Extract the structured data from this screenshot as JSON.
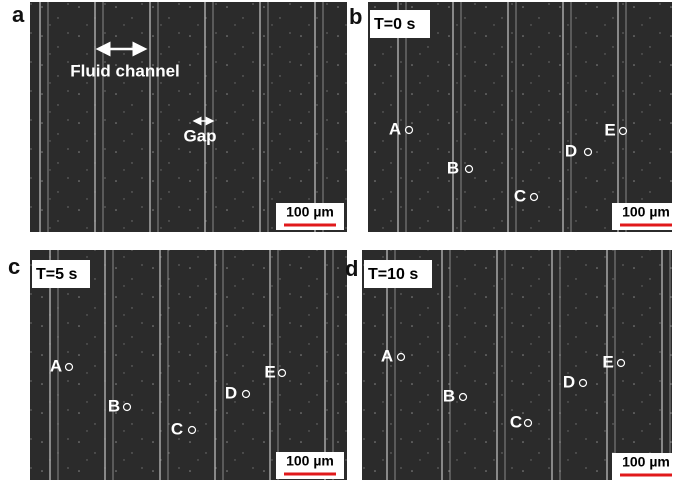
{
  "panels": [
    {
      "letter": "a",
      "annotations": [
        "Fluid channel",
        "Gap"
      ],
      "scale_bar": "100 µm"
    },
    {
      "letter": "b",
      "time": "T=0 s",
      "points": [
        "A",
        "B",
        "C",
        "D",
        "E"
      ],
      "scale_bar": "100 µm"
    },
    {
      "letter": "c",
      "time": "T=5 s",
      "points": [
        "A",
        "B",
        "C",
        "D",
        "E"
      ],
      "scale_bar": "100 µm"
    },
    {
      "letter": "d",
      "time": "T=10 s",
      "points": [
        "A",
        "B",
        "C",
        "D",
        "E"
      ],
      "scale_bar": "100 µm"
    }
  ]
}
